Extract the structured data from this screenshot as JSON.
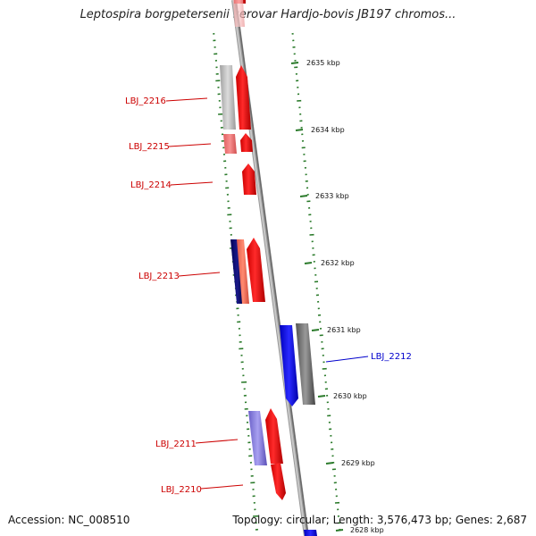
{
  "title": "Leptospira borgpetersenii serovar Hardjo-bovis JB197 chromos...",
  "footer": {
    "accession": "Accession: NC_008510",
    "summary": "Topology: circular; Length: 3,576,473 bp; Genes: 2,687"
  },
  "scale_ticks": [
    "2635 kbp",
    "2634 kbp",
    "2633 kbp",
    "2632 kbp",
    "2631 kbp",
    "2630 kbp",
    "2629 kbp",
    "2628 kbp"
  ],
  "gene_labels": [
    {
      "label": "LBJ_2216",
      "color": "#cc0000"
    },
    {
      "label": "LBJ_2215",
      "color": "#cc0000"
    },
    {
      "label": "LBJ_2214",
      "color": "#cc0000"
    },
    {
      "label": "LBJ_2213",
      "color": "#cc0000"
    },
    {
      "label": "LBJ_2212",
      "color": "#0000cc"
    },
    {
      "label": "LBJ_2211",
      "color": "#cc0000"
    },
    {
      "label": "LBJ_2210",
      "color": "#cc0000"
    }
  ],
  "colors": {
    "forward_gene": "#ff0000",
    "reverse_gene": "#0000ff",
    "backbone": "#888888",
    "gc_ticks": "#2a7a2a"
  }
}
